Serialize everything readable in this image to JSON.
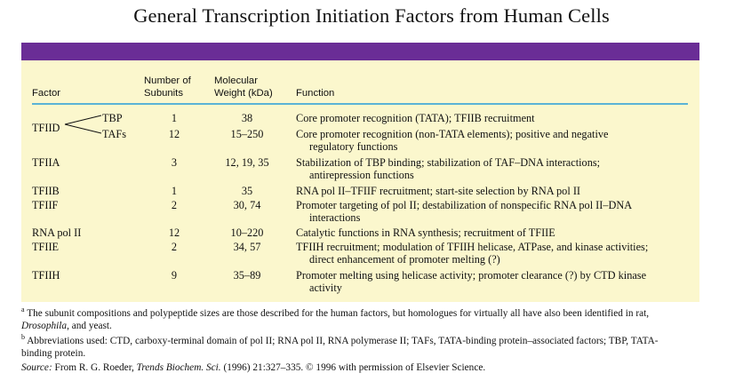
{
  "title": "General Transcription Initiation Factors from Human Cells",
  "colors": {
    "band": "#6a2d96",
    "panel": "#fbf7cd",
    "rule": "#5bb3d6"
  },
  "headers": {
    "factor": "Factor",
    "subunits_1": "Number of",
    "subunits_2": "Subunits",
    "mw_1": "Molecular",
    "mw_2": "Weight (kDa)",
    "function": "Function"
  },
  "rows": [
    {
      "factor": "TFIID",
      "sub": "TBP",
      "subunits": "1",
      "mw": "38",
      "function": [
        "Core promoter recognition (TATA); TFIIB recruitment"
      ]
    },
    {
      "sub": "TAFs",
      "subunits": "12",
      "mw": "15–250",
      "function": [
        "Core promoter recognition (non-TATA elements); positive and negative",
        "regulatory functions"
      ]
    },
    {
      "factor": "TFIIA",
      "subunits": "3",
      "mw": "12, 19, 35",
      "function": [
        "Stabilization of TBP binding; stabilization of TAF–DNA interactions;",
        "antirepression functions"
      ]
    },
    {
      "factor": "TFIIB",
      "subunits": "1",
      "mw": "35",
      "function": [
        "RNA pol II–TFIIF recruitment; start-site selection by RNA pol II"
      ]
    },
    {
      "factor": "TFIIF",
      "subunits": "2",
      "mw": "30, 74",
      "function": [
        "Promoter targeting of pol II; destabilization of nonspecific RNA pol II–DNA",
        "interactions"
      ]
    },
    {
      "factor": "RNA pol II",
      "subunits": "12",
      "mw": "10–220",
      "function": [
        "Catalytic functions in RNA synthesis; recruitment of TFIIE"
      ]
    },
    {
      "factor": "TFIIE",
      "subunits": "2",
      "mw": "34, 57",
      "function": [
        "TFIIH recruitment; modulation of TFIIH helicase, ATPase, and kinase activities;",
        "direct enhancement of promoter melting (?)"
      ]
    },
    {
      "factor": "TFIIH",
      "subunits": "9",
      "mw": "35–89",
      "function": [
        "Promoter melting using helicase activity; promoter clearance (?) by CTD kinase",
        "activity"
      ]
    }
  ],
  "footnotes": {
    "a_mark": "a",
    "a_line1": "The subunit compositions and polypeptide sizes are those described for the human factors, but homologues for virtually all have also been identified in rat,",
    "a_line2_italic": "Drosophila",
    "a_line2_rest": ", and yeast.",
    "b_mark": "b",
    "b_line1": "Abbreviations used: CTD, carboxy-terminal domain of pol II; RNA pol II, RNA polymerase II; TAFs, TATA-binding protein–associated factors; TBP, TATA-",
    "b_line2": "binding protein.",
    "source_label": "Source:",
    "source_pre": " From R. G. Roeder, ",
    "source_journal": "Trends Biochem. Sci.",
    "source_post": " (1996) 21:327–335. © 1996 with permission of Elsevier Science."
  }
}
